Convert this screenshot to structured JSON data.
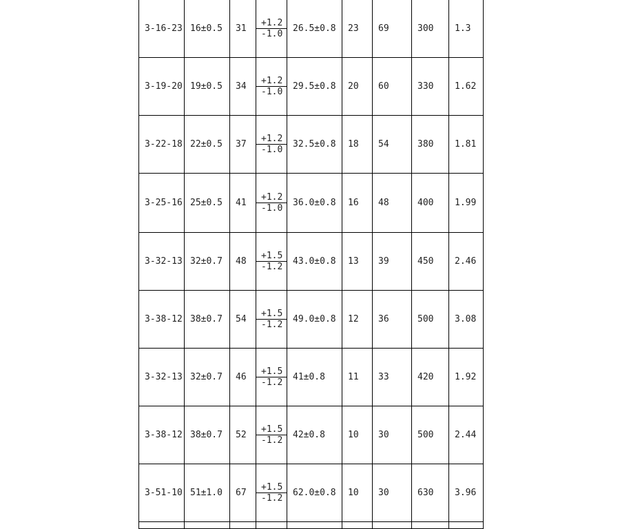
{
  "table": {
    "rows": [
      {
        "model": "3-16-23",
        "d1": "16±0.5",
        "d2": "31",
        "tol_plus": "+1.2",
        "tol_minus": "-1.0",
        "d3": "26.5±0.8",
        "c1": "23",
        "c2": "69",
        "c3": "300",
        "c4": "1.3"
      },
      {
        "model": "3-19-20",
        "d1": "19±0.5",
        "d2": "34",
        "tol_plus": "+1.2",
        "tol_minus": "-1.0",
        "d3": "29.5±0.8",
        "c1": "20",
        "c2": "60",
        "c3": "330",
        "c4": "1.62"
      },
      {
        "model": "3-22-18",
        "d1": "22±0.5",
        "d2": "37",
        "tol_plus": "+1.2",
        "tol_minus": "-1.0",
        "d3": "32.5±0.8",
        "c1": "18",
        "c2": "54",
        "c3": "380",
        "c4": "1.81"
      },
      {
        "model": "3-25-16",
        "d1": "25±0.5",
        "d2": "41",
        "tol_plus": "+1.2",
        "tol_minus": "-1.0",
        "d3": "36.0±0.8",
        "c1": "16",
        "c2": "48",
        "c3": "400",
        "c4": "1.99"
      },
      {
        "model": "3-32-13",
        "d1": "32±0.7",
        "d2": "48",
        "tol_plus": "+1.5",
        "tol_minus": "-1.2",
        "d3": "43.0±0.8",
        "c1": "13",
        "c2": "39",
        "c3": "450",
        "c4": "2.46"
      },
      {
        "model": "3-38-12",
        "d1": "38±0.7",
        "d2": "54",
        "tol_plus": "+1.5",
        "tol_minus": "-1.2",
        "d3": "49.0±0.8",
        "c1": "12",
        "c2": "36",
        "c3": "500",
        "c4": "3.08"
      },
      {
        "model": "3-32-13",
        "d1": "32±0.7",
        "d2": "46",
        "tol_plus": "+1.5",
        "tol_minus": "-1.2",
        "d3": "41±0.8",
        "c1": "11",
        "c2": "33",
        "c3": "420",
        "c4": "1.92"
      },
      {
        "model": "3-38-12",
        "d1": "38±0.7",
        "d2": "52",
        "tol_plus": "+1.5",
        "tol_minus": "-1.2",
        "d3": "42±0.8",
        "c1": "10",
        "c2": "30",
        "c3": "500",
        "c4": "2.44"
      },
      {
        "model": "3-51-10",
        "d1": "51±1.0",
        "d2": "67",
        "tol_plus": "+1.5",
        "tol_minus": "-1.2",
        "d3": "62.0±0.8",
        "c1": "10",
        "c2": "30",
        "c3": "630",
        "c4": "3.96"
      }
    ]
  }
}
